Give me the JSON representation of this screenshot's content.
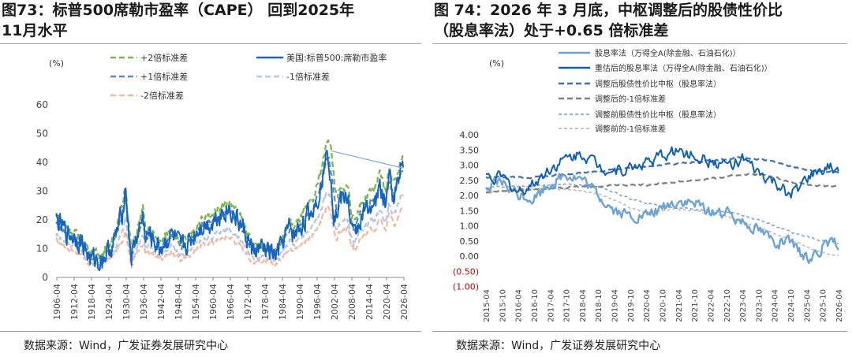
{
  "left": {
    "title_line1": "图73：标普500席勒市盈率（CAPE） 回到2025年",
    "title_line2": "11月水平",
    "source": "数据来源：Wind，广发证券发展研究中心",
    "colors": {
      "main": "#1565c0",
      "plus2": "#7cb44c",
      "plus1": "#5b88c6",
      "minus1": "#b9c4e6",
      "minus2": "#f2b8a2",
      "trend": "#6fa0d0"
    }
  },
  "right": {
    "title_line1": "图 74：2026 年 3 月底，中枢调整后的股债性价比",
    "title_line2": "（股息率法）处于+0.65 倍标准差",
    "source": "数据来源：Wind，广发证券发展研究中心",
    "colors": {
      "raw": "#6ea3d6",
      "adj": "#1060b5",
      "adjMid": "#3f6fb5",
      "adjMinus1": "#7f7f7f",
      "preMid": "#7fa4db",
      "preMinus1": "#bdbdbd",
      "neg": "#cc0000"
    }
  },
  "chart_data": [
    {
      "type": "line",
      "title": "标普500席勒市盈率（CAPE）",
      "ylabel": "(%)",
      "ylim": [
        0,
        60
      ],
      "yticks": [
        "0",
        "10",
        "20",
        "30",
        "40",
        "50",
        "60"
      ],
      "x_ticks": [
        "1906-04",
        "1912-04",
        "1918-04",
        "1924-04",
        "1930-04",
        "1936-04",
        "1942-04",
        "1948-04",
        "1954-04",
        "1960-04",
        "1966-04",
        "1972-04",
        "1978-04",
        "1984-04",
        "1990-04",
        "1996-04",
        "2002-04",
        "2008-04",
        "2014-04",
        "2020-04",
        "2026-04"
      ],
      "legend": [
        "+2倍标准差",
        "美国:标普500:席勒市盈率",
        "+1倍标准差",
        "-1倍标准差",
        "-2倍标准差"
      ],
      "anchor_years": [
        1906,
        1910,
        1912,
        1915,
        1918,
        1920,
        1921,
        1924,
        1926,
        1929,
        1930,
        1931,
        1932,
        1933,
        1936,
        1937,
        1938,
        1942,
        1946,
        1949,
        1952,
        1956,
        1960,
        1962,
        1966,
        1970,
        1974,
        1977,
        1980,
        1982,
        1987,
        1988,
        1990,
        1992,
        1995,
        1997,
        1999,
        2000,
        2001,
        2002,
        2003,
        2004,
        2007,
        2008,
        2009,
        2011,
        2013,
        2015,
        2016,
        2018,
        2019,
        2020,
        2021,
        2022,
        2023,
        2024,
        2025,
        2026
      ],
      "series": [
        {
          "name": "美国:标普500:席勒市盈率",
          "values": [
            20,
            15,
            14.5,
            12,
            6,
            6.5,
            5.5,
            9,
            12,
            23,
            32,
            17,
            7,
            11,
            21,
            13,
            15,
            10,
            15,
            10,
            12,
            18,
            19,
            22,
            24,
            18,
            9,
            10,
            9,
            7,
            18,
            14,
            17,
            20,
            24,
            30,
            40,
            44,
            35,
            23,
            22,
            27,
            28,
            17,
            14,
            20,
            23,
            26,
            24,
            32,
            28,
            25,
            36,
            30,
            28,
            33,
            39,
            40
          ]
        },
        {
          "name": "+2倍标准差",
          "values": [
            22,
            17,
            16,
            13.5,
            8.5,
            8.5,
            7.5,
            11,
            14,
            25,
            33,
            20,
            9.5,
            12.5,
            24,
            15,
            17,
            12,
            17,
            12,
            14,
            20,
            22,
            24,
            26,
            21,
            11,
            12,
            11,
            9,
            20,
            17,
            20,
            23,
            27,
            35,
            44,
            49,
            45,
            36,
            27,
            30,
            32,
            23,
            19,
            25,
            28,
            30,
            30,
            36,
            33,
            30,
            38,
            35,
            33,
            37,
            40,
            41
          ]
        },
        {
          "name": "+1倍标准差",
          "values": [
            19,
            15,
            14,
            11.5,
            7,
            7,
            6.5,
            9.5,
            12.5,
            22,
            29,
            17,
            8,
            11,
            20,
            13,
            15,
            10.5,
            15,
            10.5,
            12,
            18,
            19,
            21,
            23,
            18,
            9.5,
            10.5,
            9.5,
            8,
            17,
            15,
            17,
            20,
            24,
            30,
            38,
            42,
            38,
            30,
            23,
            26,
            28,
            20,
            16,
            22,
            25,
            27,
            26,
            32,
            29,
            27,
            34,
            31,
            29,
            33,
            36,
            37
          ]
        },
        {
          "name": "-1倍标准差",
          "values": [
            15,
            12,
            11,
            9,
            5,
            5,
            5,
            7,
            9.5,
            16,
            21,
            12,
            5.5,
            8,
            15,
            9.5,
            11,
            7.5,
            11,
            7.5,
            9,
            13,
            14,
            16,
            17,
            13,
            6.5,
            7.5,
            6.5,
            5.5,
            13,
            11,
            13,
            15,
            18,
            22,
            28,
            30,
            27,
            21,
            16,
            19,
            20,
            14,
            11,
            16,
            18,
            20,
            19,
            24,
            21,
            19,
            26,
            23,
            21,
            25,
            28,
            29
          ]
        },
        {
          "name": "-2倍标准差",
          "values": [
            13,
            10,
            9.5,
            7.5,
            4,
            4,
            4,
            6,
            8,
            13,
            17,
            10,
            4,
            6.5,
            12,
            8,
            9,
            6,
            9,
            6,
            7.5,
            11,
            12,
            13,
            14,
            11,
            5,
            6,
            5,
            4.5,
            11,
            9,
            11,
            12.5,
            15,
            18,
            23,
            25,
            22,
            17,
            13,
            16,
            17,
            11,
            9,
            13,
            15,
            17,
            16,
            20,
            18,
            16,
            22,
            20,
            18,
            21,
            24,
            25
          ]
        }
      ],
      "trendline": {
        "from": [
          2001,
          44
        ],
        "to": [
          2026,
          38
        ]
      }
    },
    {
      "type": "line",
      "title": "中枢调整后的股债性价比（股息率法）",
      "ylabel": "(%)",
      "ylim": [
        -1,
        4
      ],
      "yticks": [
        "4.00",
        "3.50",
        "3.00",
        "2.50",
        "2.00",
        "1.50",
        "1.00",
        "0.50",
        "0.00",
        "(0.50)",
        "(1.00)"
      ],
      "x_ticks": [
        "2015-04",
        "2015-10",
        "2016-04",
        "2016-10",
        "2017-04",
        "2017-10",
        "2018-04",
        "2018-10",
        "2019-04",
        "2019-10",
        "2020-04",
        "2020-10",
        "2021-04",
        "2021-10",
        "2022-04",
        "2022-10",
        "2023-04",
        "2023-10",
        "2024-04",
        "2024-10",
        "2025-04",
        "2025-10",
        "2026-04"
      ],
      "legend": [
        "股息率法（万得全A(除金融、石油石化)）",
        "重估后的股息率法（万得全A(除金融、石油石化)）",
        "调整后股债性价比中枢（股息率法）",
        "调整后的-1倍标准差",
        "调整前股债性价比中枢（股息率法）",
        "调整前的-1倍标准差"
      ],
      "anchor_dates": [
        "2015-04",
        "2015-10",
        "2016-04",
        "2016-10",
        "2017-04",
        "2017-10",
        "2018-04",
        "2018-10",
        "2019-04",
        "2019-10",
        "2020-04",
        "2020-10",
        "2021-04",
        "2021-10",
        "2022-04",
        "2022-10",
        "2023-04",
        "2023-10",
        "2024-04",
        "2024-10",
        "2025-04",
        "2025-10",
        "2026-04"
      ],
      "series": [
        {
          "name": "股息率法（万得全A(除金融、石油石化)）",
          "values": [
            2.2,
            2.4,
            2.0,
            1.9,
            2.4,
            2.7,
            2.5,
            2.0,
            1.5,
            1.3,
            1.3,
            1.6,
            1.8,
            1.7,
            1.5,
            1.4,
            1.2,
            0.9,
            0.5,
            0.4,
            -0.1,
            0.3,
            0.4
          ]
        },
        {
          "name": "重估后的股息率法（万得全A(除金融、石油石化)）",
          "values": [
            2.6,
            2.6,
            2.1,
            2.4,
            2.9,
            3.2,
            3.4,
            3.0,
            2.8,
            2.9,
            3.1,
            3.3,
            3.5,
            3.3,
            3.1,
            3.0,
            3.2,
            2.7,
            2.4,
            2.0,
            2.5,
            2.9,
            2.9
          ]
        },
        {
          "name": "调整后股债性价比中枢（股息率法）",
          "values": [
            2.6,
            2.6,
            2.6,
            2.6,
            2.65,
            2.7,
            2.75,
            2.8,
            2.85,
            2.9,
            2.95,
            3.0,
            3.05,
            3.1,
            3.15,
            3.2,
            3.25,
            3.2,
            3.1,
            2.95,
            2.85,
            2.8,
            2.75
          ]
        },
        {
          "name": "调整后的-1倍标准差",
          "values": [
            2.1,
            2.15,
            2.2,
            2.2,
            2.25,
            2.25,
            2.3,
            2.3,
            2.35,
            2.35,
            2.35,
            2.4,
            2.45,
            2.5,
            2.55,
            2.6,
            2.7,
            2.7,
            2.6,
            2.45,
            2.35,
            2.3,
            2.3
          ]
        },
        {
          "name": "调整前股债性价比中枢（股息率法）",
          "values": [
            2.25,
            2.3,
            2.3,
            2.3,
            2.35,
            2.35,
            2.35,
            2.3,
            2.1,
            1.9,
            1.75,
            1.65,
            1.6,
            1.55,
            1.5,
            1.45,
            1.35,
            1.2,
            1.0,
            0.8,
            0.65,
            0.5,
            0.4
          ]
        },
        {
          "name": "调整前的-1倍标准差",
          "values": [
            2.1,
            2.15,
            2.2,
            2.2,
            2.2,
            2.2,
            2.15,
            2.05,
            1.85,
            1.6,
            1.45,
            1.5,
            1.55,
            1.5,
            1.4,
            1.3,
            1.15,
            0.95,
            0.75,
            0.55,
            0.3,
            0.1,
            0.0
          ]
        }
      ]
    }
  ]
}
